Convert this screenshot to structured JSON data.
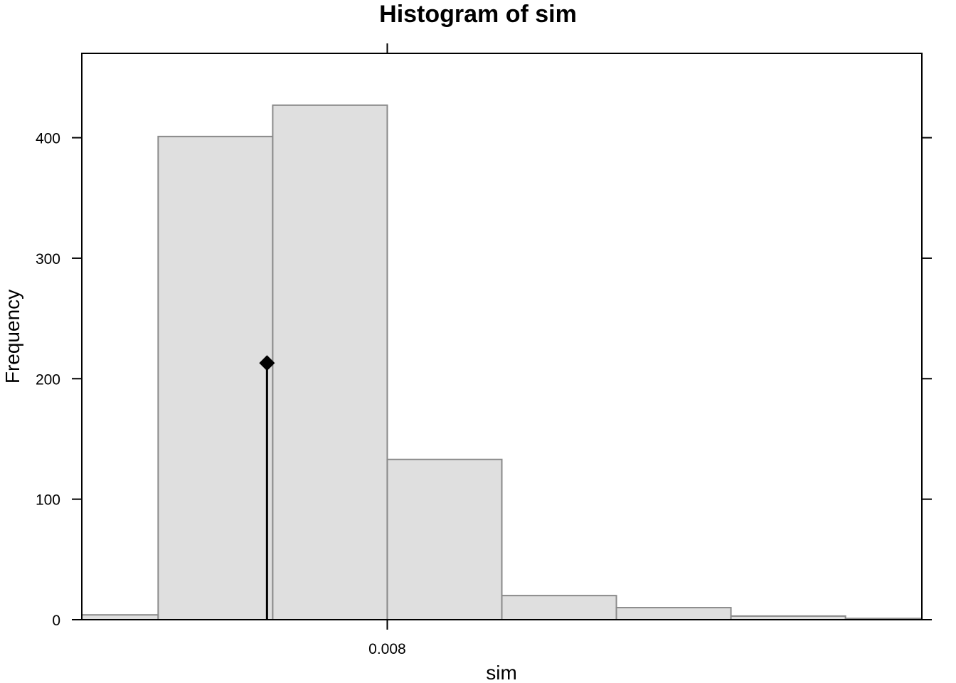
{
  "chart_data": {
    "type": "bar",
    "title": "Histogram of sim",
    "xlabel": "sim",
    "ylabel": "Frequency",
    "x_ticks": [
      {
        "value": 0.008,
        "label": "0.008"
      }
    ],
    "y_ticks": [
      {
        "value": 0,
        "label": "0"
      },
      {
        "value": 100,
        "label": "100"
      },
      {
        "value": 200,
        "label": "200"
      },
      {
        "value": 300,
        "label": "300"
      },
      {
        "value": 400,
        "label": "400"
      }
    ],
    "xlim": [
      0.0064,
      0.0108
    ],
    "ylim": [
      0,
      470
    ],
    "bins": [
      {
        "start": 0.0064,
        "end": 0.0068,
        "count": 4
      },
      {
        "start": 0.0068,
        "end": 0.0074,
        "count": 401
      },
      {
        "start": 0.0074,
        "end": 0.008,
        "count": 427
      },
      {
        "start": 0.008,
        "end": 0.0086,
        "count": 133
      },
      {
        "start": 0.0086,
        "end": 0.0092,
        "count": 20
      },
      {
        "start": 0.0092,
        "end": 0.0098,
        "count": 10
      },
      {
        "start": 0.0098,
        "end": 0.0104,
        "count": 3
      },
      {
        "start": 0.0104,
        "end": 0.0108,
        "count": 1
      }
    ],
    "observed": {
      "x": 0.00737,
      "y": 213
    },
    "bar_color": "#dfdfdf",
    "bar_border_color": "#8a8a8a",
    "grid": false
  }
}
